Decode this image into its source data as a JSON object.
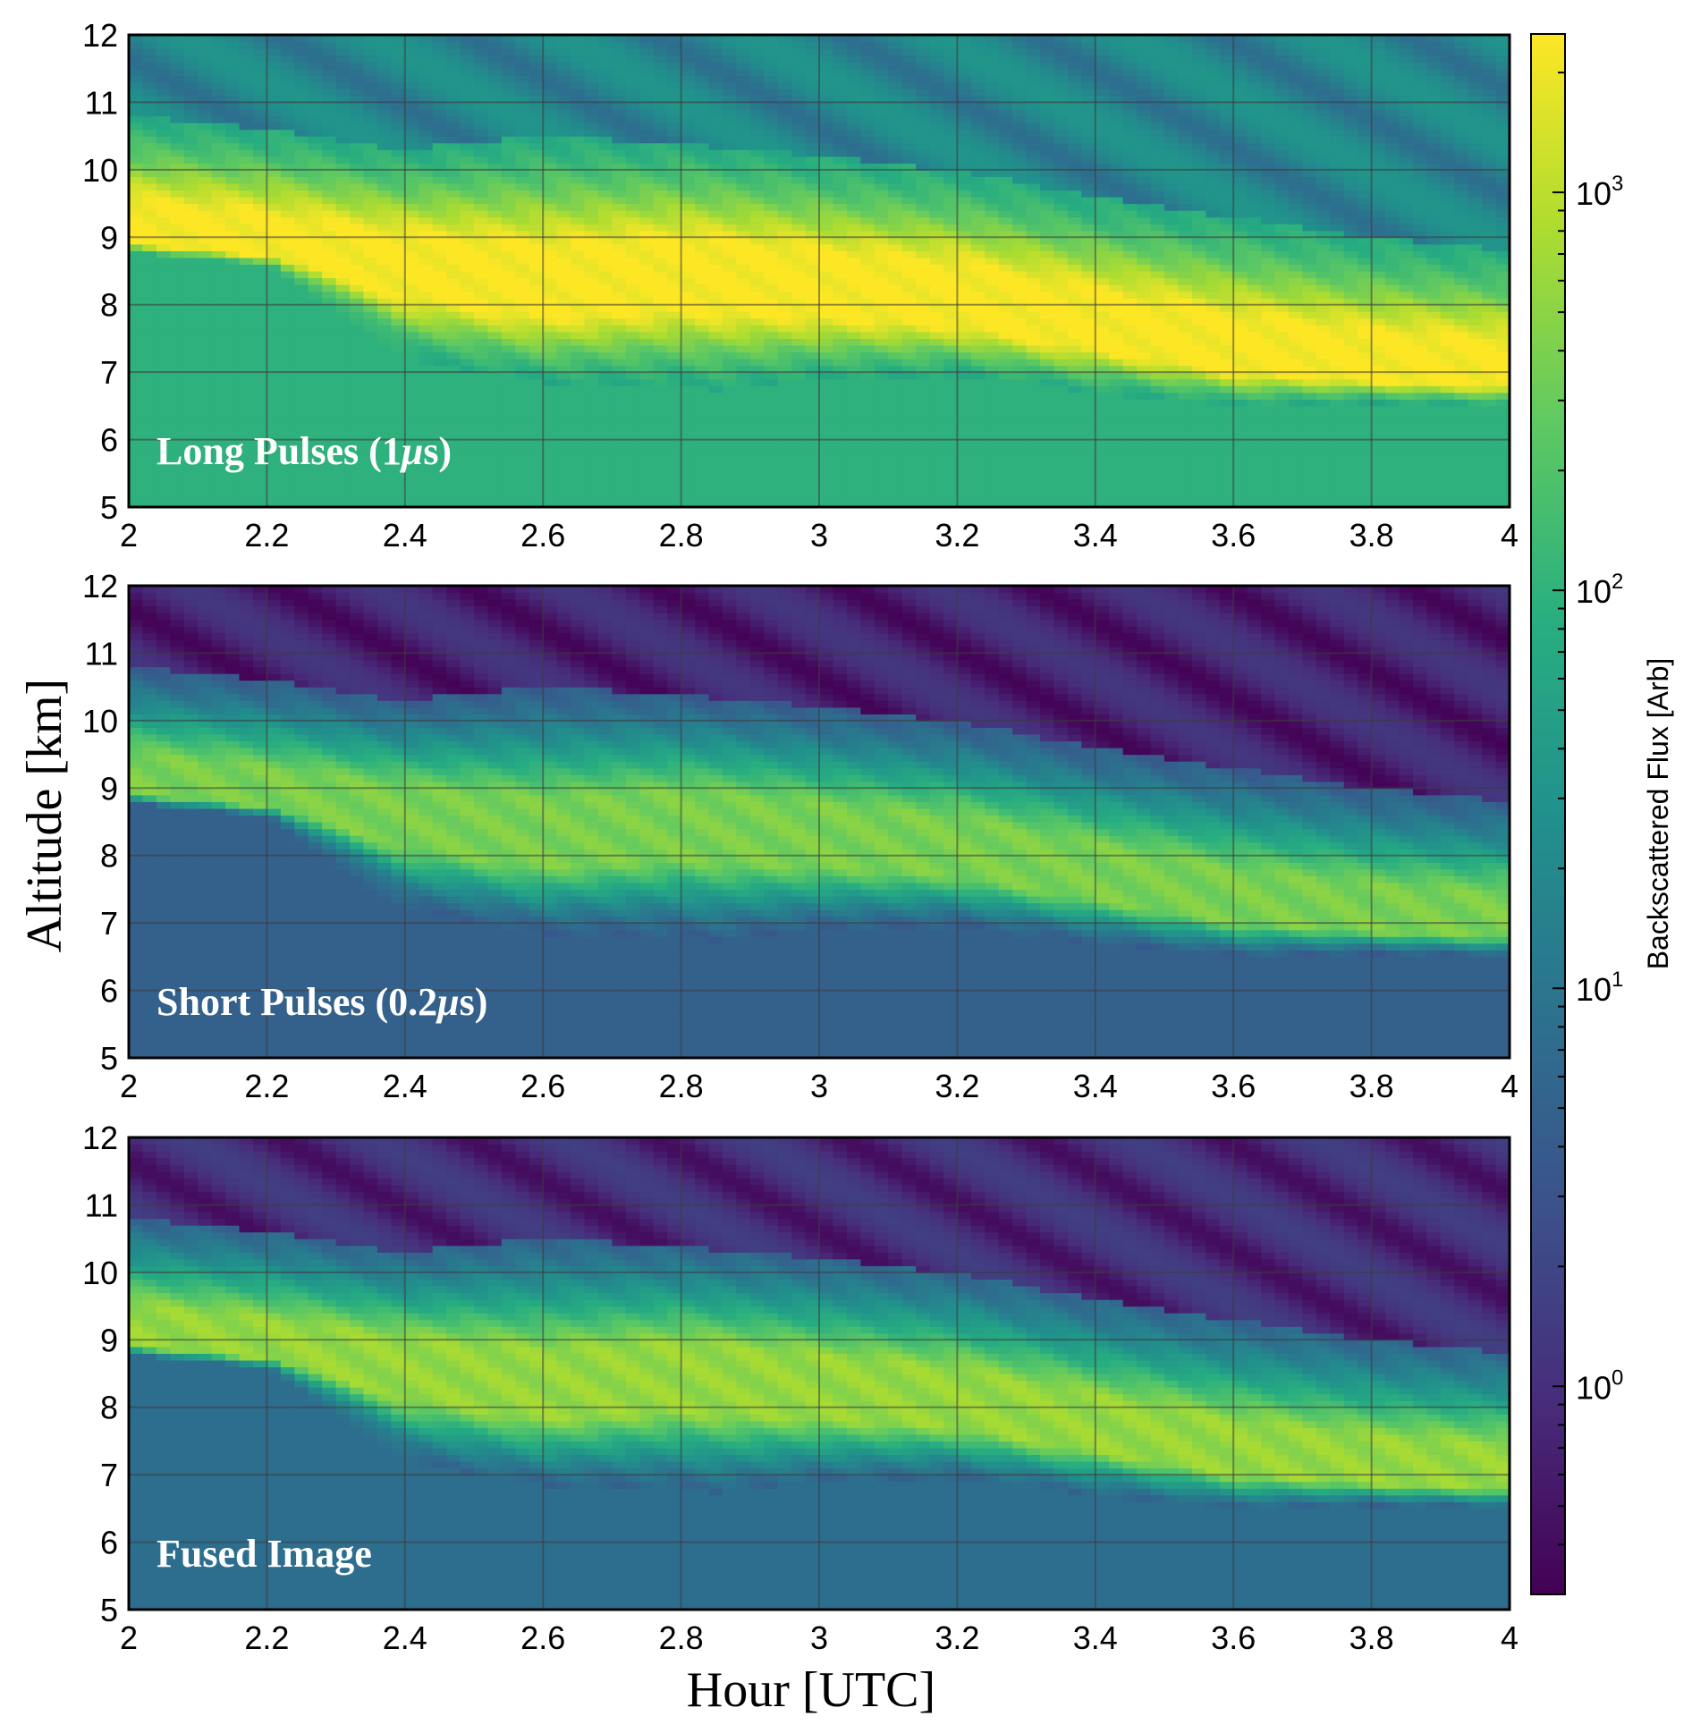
{
  "chart_data": {
    "type": "heatmap",
    "xlabel": "Hour [UTC]",
    "ylabel": "Altitude [km]",
    "xlim": [
      2,
      4
    ],
    "ylim": [
      5,
      12
    ],
    "x_ticks": [
      "2",
      "2.2",
      "2.4",
      "2.6",
      "2.8",
      "3",
      "3.2",
      "3.4",
      "3.6",
      "3.8",
      "4"
    ],
    "y_ticks": [
      "5",
      "6",
      "7",
      "8",
      "9",
      "10",
      "11",
      "12"
    ],
    "grid": true,
    "colormap": "viridis",
    "colorbar": {
      "label": "Backscattered Flux [Arb]",
      "scale": "log",
      "range": [
        0.3,
        2500
      ],
      "ticks": [
        {
          "base": "10",
          "exp": "0",
          "value": 1
        },
        {
          "base": "10",
          "exp": "1",
          "value": 10
        },
        {
          "base": "10",
          "exp": "2",
          "value": 100
        },
        {
          "base": "10",
          "exp": "3",
          "value": 1000
        }
      ]
    },
    "panels": [
      {
        "label": "Long Pulses (1",
        "label_mu": "μ",
        "label_end": "s)",
        "background_below_cloud": 100,
        "background_above_cloud": 20,
        "cloud_peak": 2500
      },
      {
        "label": "Short Pulses (0.2",
        "label_mu": "μ",
        "label_end": "s)",
        "background_below_cloud": 5,
        "background_above_cloud": 0.8,
        "cloud_peak": 400
      },
      {
        "label": "Fused Image",
        "label_mu": "",
        "label_end": "",
        "background_below_cloud": 8,
        "background_above_cloud": 1,
        "cloud_peak": 600
      }
    ],
    "cloud_base_km": {
      "x": [
        2.0,
        2.2,
        2.4,
        2.6,
        2.8,
        2.85,
        3.0,
        3.2,
        3.4,
        3.6,
        3.8,
        4.0
      ],
      "y": [
        8.8,
        8.6,
        7.2,
        6.85,
        6.8,
        6.75,
        6.9,
        6.95,
        6.7,
        6.5,
        6.55,
        6.5
      ]
    },
    "cloud_core_km": {
      "x": [
        2.0,
        2.2,
        2.4,
        2.6,
        2.8,
        3.0,
        3.2,
        3.4,
        3.6,
        3.8,
        4.0
      ],
      "y": [
        9.0,
        8.8,
        8.5,
        8.2,
        8.4,
        8.2,
        8.0,
        7.6,
        7.2,
        7.0,
        6.9
      ]
    },
    "cloud_top_km": {
      "x": [
        2.0,
        2.2,
        2.4,
        2.6,
        2.8,
        3.0,
        3.2,
        3.4,
        3.6,
        3.8,
        4.0
      ],
      "y": [
        10.8,
        10.6,
        10.3,
        10.5,
        10.4,
        10.2,
        10.0,
        9.6,
        9.3,
        9.0,
        8.8
      ]
    }
  }
}
